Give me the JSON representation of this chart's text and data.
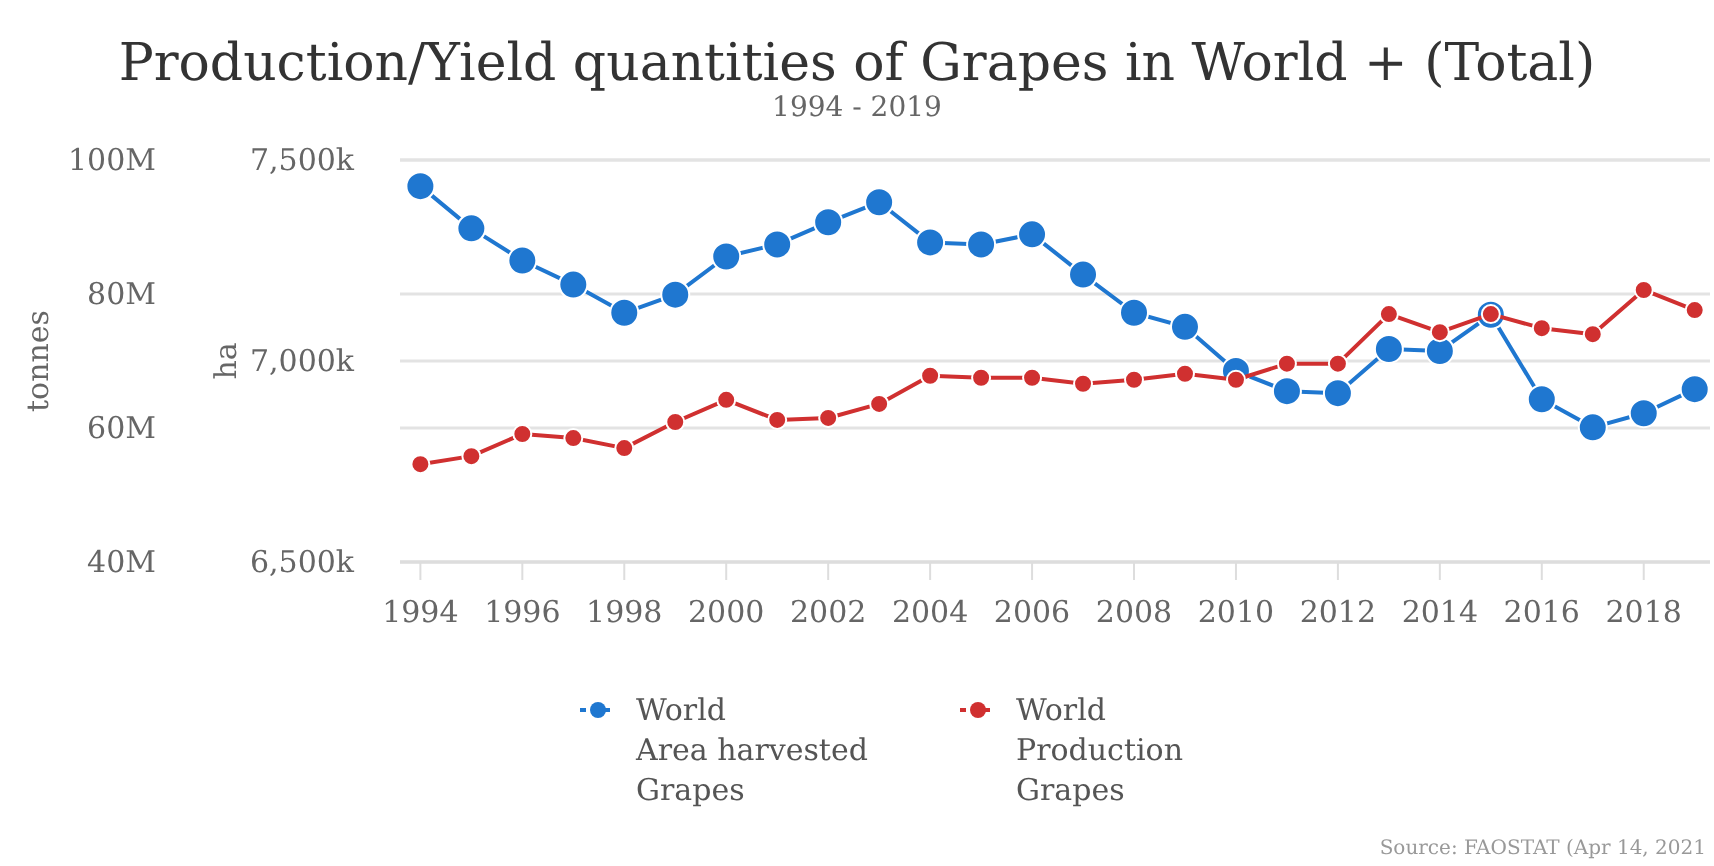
{
  "chart_data": {
    "type": "line",
    "title": "Production/Yield quantities of Grapes in World + (Total)",
    "subtitle": "1994 - 2019",
    "ylabel": "tonnes",
    "y2label": "ha",
    "x": [
      1994,
      1995,
      1996,
      1997,
      1998,
      1999,
      2000,
      2001,
      2002,
      2003,
      2004,
      2005,
      2006,
      2007,
      2008,
      2009,
      2010,
      2011,
      2012,
      2013,
      2014,
      2015,
      2016,
      2017,
      2018,
      2019
    ],
    "xlim": [
      1993.6,
      2019.3
    ],
    "xticks": [
      1994,
      1996,
      1998,
      2000,
      2002,
      2004,
      2006,
      2008,
      2010,
      2012,
      2014,
      2016,
      2018
    ],
    "ylim": [
      40000000,
      100000000
    ],
    "yticks": [
      {
        "value": 40000000,
        "label": "40M"
      },
      {
        "value": 60000000,
        "label": "60M"
      },
      {
        "value": 80000000,
        "label": "80M"
      },
      {
        "value": 100000000,
        "label": "100M"
      }
    ],
    "y2lim": [
      6500000,
      7500000
    ],
    "y2ticks": [
      {
        "value": 6500000,
        "label": "6,500k"
      },
      {
        "value": 7000000,
        "label": "7,000k"
      },
      {
        "value": 7500000,
        "label": "7,500k"
      }
    ],
    "series": [
      {
        "name": "World\nArea harvested\nGrapes",
        "color": "#1f77d0",
        "axis": "y2",
        "values": [
          7435000,
          7330000,
          7250000,
          7190000,
          7120000,
          7165000,
          7260000,
          7290000,
          7345000,
          7395000,
          7295000,
          7290000,
          7315000,
          7215000,
          7120000,
          7085000,
          6975000,
          6925000,
          6920000,
          7030000,
          7025000,
          7115000,
          6905000,
          6835000,
          6870000,
          6930000
        ]
      },
      {
        "name": "World\nProduction\nGrapes",
        "color": "#d03030",
        "axis": "y",
        "values": [
          54600000,
          55800000,
          59100000,
          58500000,
          57000000,
          60900000,
          64200000,
          61200000,
          61500000,
          63600000,
          67800000,
          67500000,
          67500000,
          66600000,
          67200000,
          68100000,
          67200000,
          69600000,
          69600000,
          77000000,
          74300000,
          77000000,
          74900000,
          74000000,
          80600000,
          77600000
        ]
      }
    ],
    "grid": "y",
    "legend": "bottom",
    "marker": "circle",
    "line_style": "solid",
    "annotations": [
      "Source: FAOSTAT (Apr 14, 2021"
    ]
  }
}
